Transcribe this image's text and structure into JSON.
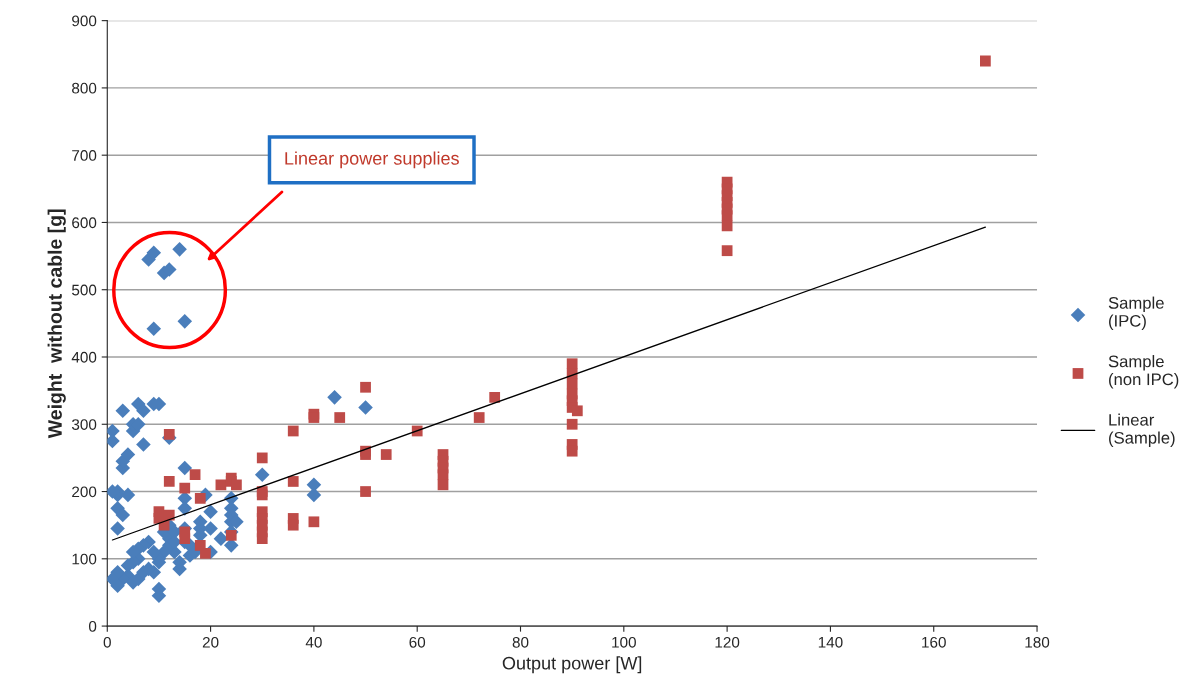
{
  "chart_data": {
    "type": "scatter",
    "xlabel": "Output power [W]",
    "ylabel": "Weight  without cable [g]",
    "xlim": [
      0,
      180
    ],
    "xticks": [
      0,
      20,
      40,
      60,
      80,
      100,
      120,
      140,
      160,
      180
    ],
    "ylim": [
      0,
      900
    ],
    "yticks": [
      0,
      100,
      200,
      300,
      400,
      500,
      600,
      700,
      800,
      900
    ],
    "grid": "y",
    "legend": "right",
    "annotations": [
      "Linear power supplies"
    ],
    "series": [
      {
        "name": "Sample\n(IPC)",
        "color": "#4a7ebb",
        "marker": "diamond",
        "x": [
          8,
          9,
          11,
          12,
          14,
          9,
          15,
          1,
          1,
          2,
          2,
          2,
          3,
          3,
          3,
          4,
          4,
          3,
          5,
          5,
          6,
          6,
          7,
          7,
          9,
          10,
          12,
          15,
          15,
          15,
          15,
          15,
          18,
          18,
          18,
          19,
          20,
          20,
          24,
          24,
          24,
          24,
          24,
          24,
          25,
          30,
          40,
          40,
          44,
          50,
          14,
          14,
          16,
          13,
          12,
          12,
          11,
          10,
          10,
          9,
          10,
          10,
          8,
          7,
          6,
          6,
          5,
          5,
          4,
          4,
          3,
          2,
          2,
          1,
          5,
          6,
          7,
          8,
          9,
          11,
          12,
          13,
          13,
          16,
          17,
          20,
          22,
          2,
          1
        ],
        "values": [
          545,
          555,
          525,
          530,
          560,
          442,
          453,
          290,
          275,
          195,
          175,
          145,
          320,
          235,
          245,
          255,
          195,
          165,
          290,
          300,
          330,
          300,
          320,
          270,
          330,
          330,
          280,
          235,
          190,
          175,
          145,
          125,
          155,
          145,
          135,
          195,
          145,
          170,
          190,
          175,
          165,
          155,
          140,
          120,
          155,
          225,
          210,
          195,
          340,
          325,
          85,
          95,
          105,
          110,
          130,
          120,
          110,
          100,
          95,
          80,
          55,
          45,
          125,
          120,
          115,
          100,
          95,
          110,
          90,
          75,
          70,
          80,
          60,
          70,
          65,
          70,
          80,
          85,
          110,
          140,
          150,
          140,
          125,
          120,
          110,
          110,
          130,
          200,
          200
        ]
      },
      {
        "name": "Sample\n(non IPC)",
        "color": "#be4b48",
        "marker": "square",
        "x": [
          12,
          12,
          10,
          10,
          11,
          12,
          15,
          15,
          15,
          17,
          18,
          18,
          19,
          22,
          24,
          24,
          24,
          25,
          30,
          30,
          30,
          30,
          30,
          30,
          30,
          30,
          36,
          36,
          36,
          36,
          40,
          40,
          40,
          45,
          50,
          50,
          50,
          50,
          54,
          60,
          65,
          65,
          65,
          65,
          65,
          72,
          75,
          90,
          90,
          90,
          90,
          90,
          90,
          91,
          90,
          90,
          90,
          120,
          120,
          120,
          120,
          120,
          120,
          120,
          120,
          170
        ],
        "values": [
          285,
          215,
          170,
          160,
          150,
          165,
          205,
          140,
          130,
          225,
          190,
          120,
          108,
          210,
          220,
          215,
          135,
          210,
          250,
          200,
          195,
          170,
          160,
          150,
          140,
          130,
          290,
          215,
          160,
          150,
          315,
          310,
          155,
          310,
          355,
          260,
          255,
          200,
          255,
          290,
          255,
          245,
          235,
          225,
          210,
          310,
          340,
          390,
          375,
          360,
          345,
          335,
          325,
          320,
          300,
          270,
          260,
          660,
          650,
          640,
          630,
          620,
          610,
          595,
          558,
          840
        ]
      },
      {
        "name": "Linear\n(Sample)",
        "type": "line",
        "color": "#000000",
        "marker": "none",
        "x": [
          1,
          170
        ],
        "values": [
          128,
          593
        ]
      }
    ]
  }
}
